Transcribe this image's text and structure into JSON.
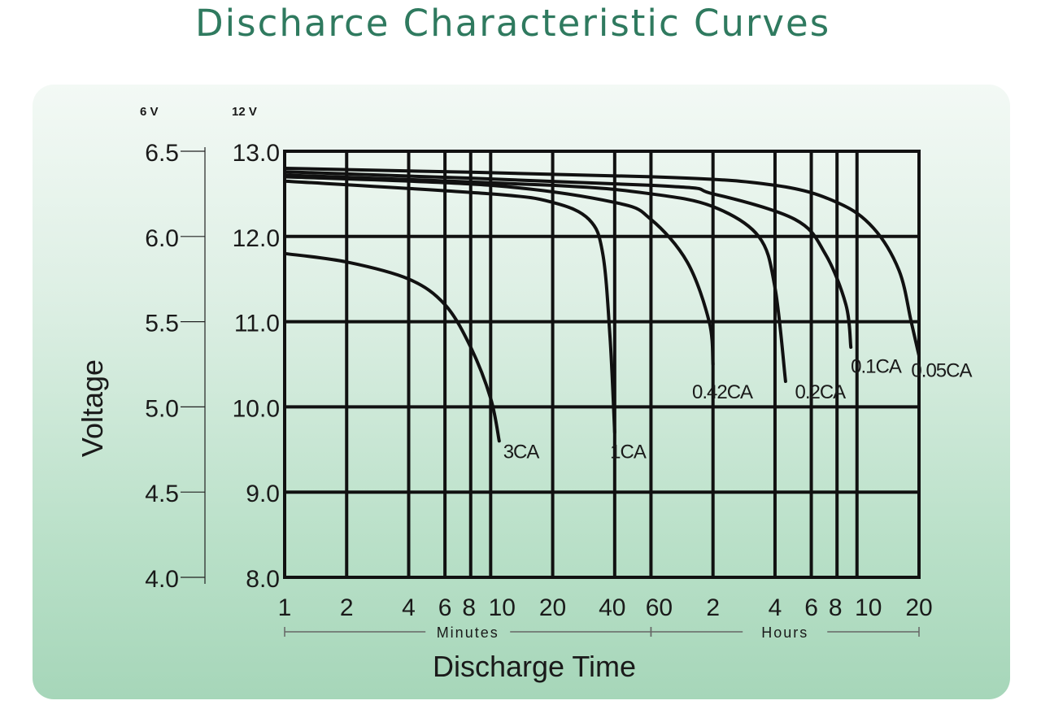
{
  "chart_data": {
    "type": "line",
    "title": "Discharce Characteristic Curves",
    "xlabel": "Discharge Time",
    "ylabel": "Voltage",
    "x_scale": "log",
    "x_range_minutes": [
      1,
      1200
    ],
    "ylim_12v": [
      8.0,
      13.0
    ],
    "ylim_6v": [
      4.0,
      6.5
    ],
    "grid": true,
    "y_axis_12v": {
      "unit_label": "12 V",
      "ticks": [
        "13.0",
        "12.0",
        "11.0",
        "10.0",
        "9.0",
        "8.0"
      ],
      "values": [
        13,
        12,
        11,
        10,
        9,
        8
      ]
    },
    "y_axis_6v": {
      "unit_label": "6 V",
      "ticks": [
        "6.5",
        "6.0",
        "5.5",
        "5.0",
        "4.5",
        "4.0"
      ],
      "values": [
        6.5,
        6.0,
        5.5,
        5.0,
        4.5,
        4.0
      ]
    },
    "x_ticks": [
      {
        "label": "1",
        "minutes": 1
      },
      {
        "label": "2",
        "minutes": 2
      },
      {
        "label": "4",
        "minutes": 4
      },
      {
        "label": "6",
        "minutes": 6
      },
      {
        "label": "8",
        "minutes": 8
      },
      {
        "label": "10",
        "minutes": 10
      },
      {
        "label": "20",
        "minutes": 20
      },
      {
        "label": "40",
        "minutes": 40
      },
      {
        "label": "60",
        "minutes": 60
      },
      {
        "label": "2",
        "minutes": 120
      },
      {
        "label": "4",
        "minutes": 240
      },
      {
        "label": "6",
        "minutes": 360
      },
      {
        "label": "8",
        "minutes": 480
      },
      {
        "label": "10",
        "minutes": 600
      },
      {
        "label": "20",
        "minutes": 1200
      }
    ],
    "vertical_gridlines_minutes": [
      1,
      2,
      4,
      6,
      8,
      10,
      20,
      40,
      60,
      120,
      240,
      360,
      480,
      600,
      1200
    ],
    "horizontal_gridlines_12v": [
      13,
      12,
      11,
      10,
      9,
      8
    ],
    "x_groups": [
      {
        "label": "Minutes",
        "from": 1,
        "to": 60
      },
      {
        "label": "Hours",
        "from": 60,
        "to": 1200
      }
    ],
    "series": [
      {
        "name": "3CA",
        "label_at": [
          11.5,
          9.4
        ],
        "points": [
          [
            1,
            11.8
          ],
          [
            2,
            11.7
          ],
          [
            4,
            11.5
          ],
          [
            6,
            11.2
          ],
          [
            8,
            10.7
          ],
          [
            10,
            10.1
          ],
          [
            11,
            9.6
          ]
        ]
      },
      {
        "name": "1CA",
        "label_at": [
          38,
          9.4
        ],
        "points": [
          [
            1,
            12.65
          ],
          [
            10,
            12.5
          ],
          [
            20,
            12.4
          ],
          [
            30,
            12.2
          ],
          [
            35,
            11.8
          ],
          [
            38,
            10.8
          ],
          [
            40,
            9.7
          ]
        ]
      },
      {
        "name": "0.42CA",
        "label_at": [
          95,
          10.1
        ],
        "points": [
          [
            1,
            12.7
          ],
          [
            10,
            12.6
          ],
          [
            40,
            12.4
          ],
          [
            60,
            12.2
          ],
          [
            90,
            11.7
          ],
          [
            115,
            11.0
          ],
          [
            120,
            10.5
          ]
        ]
      },
      {
        "name": "0.2CA",
        "label_at": [
          300,
          10.1
        ],
        "points": [
          [
            1,
            12.72
          ],
          [
            20,
            12.6
          ],
          [
            60,
            12.5
          ],
          [
            120,
            12.35
          ],
          [
            200,
            12.0
          ],
          [
            240,
            11.4
          ],
          [
            270,
            10.3
          ]
        ]
      },
      {
        "name": "0.1CA",
        "label_at": [
          560,
          10.4
        ],
        "points": [
          [
            1,
            12.76
          ],
          [
            60,
            12.6
          ],
          [
            120,
            12.5
          ],
          [
            300,
            12.2
          ],
          [
            420,
            11.8
          ],
          [
            530,
            11.2
          ],
          [
            560,
            10.7
          ]
        ]
      },
      {
        "name": "0.05CA",
        "label_at": [
          1100,
          10.35
        ],
        "points": [
          [
            1,
            12.8
          ],
          [
            60,
            12.7
          ],
          [
            240,
            12.6
          ],
          [
            480,
            12.4
          ],
          [
            720,
            12.1
          ],
          [
            960,
            11.6
          ],
          [
            1100,
            11.0
          ],
          [
            1200,
            10.6
          ]
        ]
      }
    ]
  }
}
